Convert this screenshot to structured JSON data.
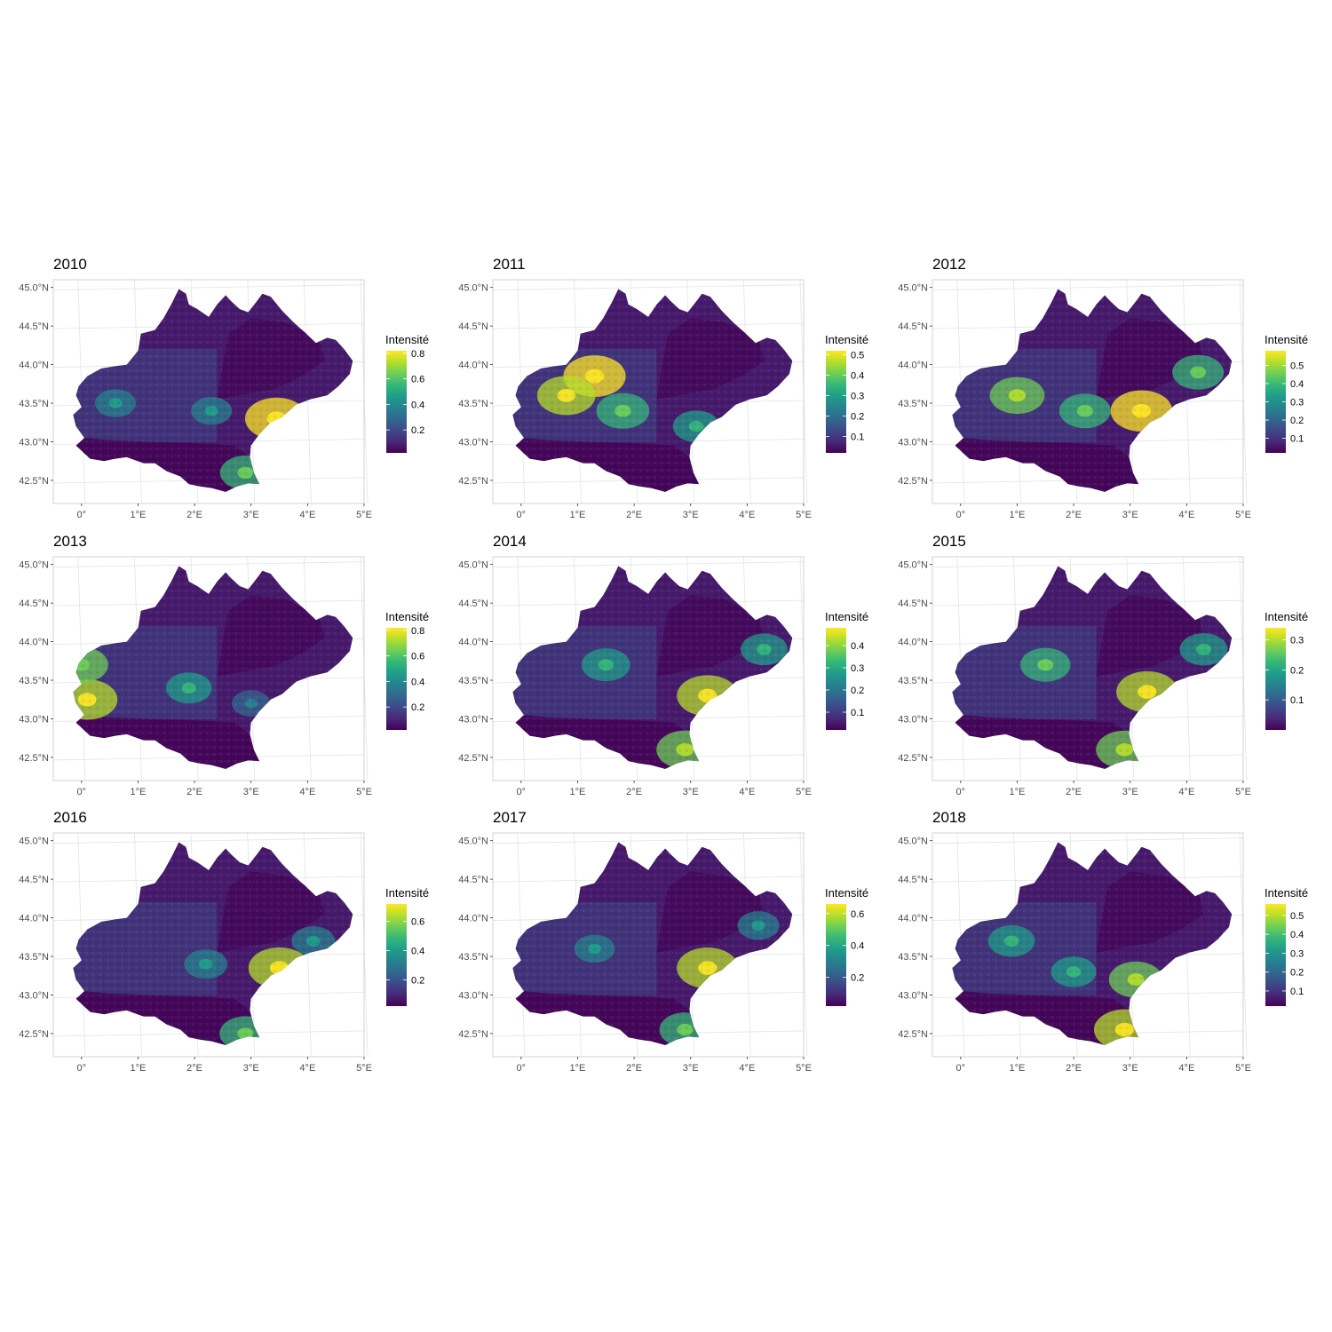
{
  "figure": {
    "legend_title": "Intensité",
    "colormap": [
      "#440154",
      "#482878",
      "#3e4989",
      "#31688e",
      "#26828e",
      "#1f9e89",
      "#35b779",
      "#6ece58",
      "#b5de2b",
      "#fde725"
    ],
    "region_base_color": "#461a6b"
  },
  "chart_data": [
    {
      "type": "heatmap",
      "title": "2010",
      "x_ticks": [
        "0°",
        "1°E",
        "2°E",
        "3°E",
        "4°E",
        "5°E"
      ],
      "y_ticks": [
        "42.5°N",
        "43.0°N",
        "43.5°N",
        "44.0°N",
        "44.5°N",
        "45.0°N"
      ],
      "xlim": [
        -0.5,
        5.0
      ],
      "ylim": [
        42.2,
        45.1
      ],
      "legend": {
        "title": "Intensité",
        "range": [
          0.02,
          0.82
        ],
        "ticks": [
          0.2,
          0.4,
          0.6,
          0.8
        ],
        "tick_labels": [
          "0.2",
          "0.4",
          "0.6",
          "0.8"
        ]
      },
      "hotspots": [
        {
          "lon": 3.45,
          "lat": 43.3,
          "intensity": 0.8
        },
        {
          "lon": 2.9,
          "lat": 42.6,
          "intensity": 0.55
        },
        {
          "lon": 0.6,
          "lat": 43.5,
          "intensity": 0.35
        },
        {
          "lon": 2.3,
          "lat": 43.4,
          "intensity": 0.35
        }
      ]
    },
    {
      "type": "heatmap",
      "title": "2011",
      "x_ticks": [
        "0°",
        "1°E",
        "2°E",
        "3°E",
        "4°E",
        "5°E"
      ],
      "y_ticks": [
        "42.5°N",
        "43.0°N",
        "43.5°N",
        "44.0°N",
        "44.5°N",
        "45.0°N"
      ],
      "xlim": [
        -0.5,
        5.0
      ],
      "ylim": [
        42.2,
        45.1
      ],
      "legend": {
        "title": "Intensité",
        "range": [
          0.02,
          0.52
        ],
        "ticks": [
          0.1,
          0.2,
          0.3,
          0.4,
          0.5
        ],
        "tick_labels": [
          "0.1",
          "0.2",
          "0.3",
          "0.4",
          "0.5"
        ]
      },
      "hotspots": [
        {
          "lon": 1.3,
          "lat": 43.85,
          "intensity": 0.5
        },
        {
          "lon": 0.8,
          "lat": 43.6,
          "intensity": 0.45
        },
        {
          "lon": 1.8,
          "lat": 43.4,
          "intensity": 0.38
        },
        {
          "lon": 3.1,
          "lat": 43.2,
          "intensity": 0.3
        }
      ]
    },
    {
      "type": "heatmap",
      "title": "2012",
      "x_ticks": [
        "0°",
        "1°E",
        "2°E",
        "3°E",
        "4°E",
        "5°E"
      ],
      "y_ticks": [
        "42.5°N",
        "43.0°N",
        "43.5°N",
        "44.0°N",
        "44.5°N",
        "45.0°N"
      ],
      "xlim": [
        -0.5,
        5.0
      ],
      "ylim": [
        42.2,
        45.1
      ],
      "legend": {
        "title": "Intensité",
        "range": [
          0.02,
          0.58
        ],
        "ticks": [
          0.1,
          0.2,
          0.3,
          0.4,
          0.5
        ],
        "tick_labels": [
          "0.1",
          "0.2",
          "0.3",
          "0.4",
          "0.5"
        ]
      },
      "hotspots": [
        {
          "lon": 1.0,
          "lat": 43.6,
          "intensity": 0.45
        },
        {
          "lon": 3.2,
          "lat": 43.4,
          "intensity": 0.55
        },
        {
          "lon": 2.2,
          "lat": 43.4,
          "intensity": 0.4
        },
        {
          "lon": 4.2,
          "lat": 43.9,
          "intensity": 0.4
        }
      ]
    },
    {
      "type": "heatmap",
      "title": "2013",
      "x_ticks": [
        "0°",
        "1°E",
        "2°E",
        "3°E",
        "4°E",
        "5°E"
      ],
      "y_ticks": [
        "42.5°N",
        "43.0°N",
        "43.5°N",
        "44.0°N",
        "44.5°N",
        "45.0°N"
      ],
      "xlim": [
        -0.5,
        5.0
      ],
      "ylim": [
        42.2,
        45.1
      ],
      "legend": {
        "title": "Intensité",
        "range": [
          0.02,
          0.82
        ],
        "ticks": [
          0.2,
          0.4,
          0.6,
          0.8
        ],
        "tick_labels": [
          "0.2",
          "0.4",
          "0.6",
          "0.8"
        ]
      },
      "hotspots": [
        {
          "lon": 0.1,
          "lat": 43.25,
          "intensity": 0.75
        },
        {
          "lon": 0.0,
          "lat": 43.7,
          "intensity": 0.6
        },
        {
          "lon": 1.9,
          "lat": 43.4,
          "intensity": 0.45
        },
        {
          "lon": 3.0,
          "lat": 43.2,
          "intensity": 0.3
        }
      ]
    },
    {
      "type": "heatmap",
      "title": "2014",
      "x_ticks": [
        "0°",
        "1°E",
        "2°E",
        "3°E",
        "4°E",
        "5°E"
      ],
      "y_ticks": [
        "42.5°N",
        "43.0°N",
        "43.5°N",
        "44.0°N",
        "44.5°N",
        "45.0°N"
      ],
      "xlim": [
        -0.5,
        5.0
      ],
      "ylim": [
        42.2,
        45.1
      ],
      "legend": {
        "title": "Intensité",
        "range": [
          0.02,
          0.48
        ],
        "ticks": [
          0.1,
          0.2,
          0.3,
          0.4
        ],
        "tick_labels": [
          "0.1",
          "0.2",
          "0.3",
          "0.4"
        ]
      },
      "hotspots": [
        {
          "lon": 3.3,
          "lat": 43.3,
          "intensity": 0.45
        },
        {
          "lon": 2.9,
          "lat": 42.6,
          "intensity": 0.4
        },
        {
          "lon": 1.5,
          "lat": 43.7,
          "intensity": 0.3
        },
        {
          "lon": 4.3,
          "lat": 43.9,
          "intensity": 0.28
        }
      ]
    },
    {
      "type": "heatmap",
      "title": "2015",
      "x_ticks": [
        "0°",
        "1°E",
        "2°E",
        "3°E",
        "4°E",
        "5°E"
      ],
      "y_ticks": [
        "42.5°N",
        "43.0°N",
        "43.5°N",
        "44.0°N",
        "44.5°N",
        "45.0°N"
      ],
      "xlim": [
        -0.5,
        5.0
      ],
      "ylim": [
        42.2,
        45.1
      ],
      "legend": {
        "title": "Intensité",
        "range": [
          0.0,
          0.34
        ],
        "ticks": [
          0.1,
          0.2,
          0.3
        ],
        "tick_labels": [
          "0.1",
          "0.2",
          "0.3"
        ]
      },
      "hotspots": [
        {
          "lon": 3.3,
          "lat": 43.35,
          "intensity": 0.32
        },
        {
          "lon": 2.9,
          "lat": 42.6,
          "intensity": 0.28
        },
        {
          "lon": 1.5,
          "lat": 43.7,
          "intensity": 0.22
        },
        {
          "lon": 4.3,
          "lat": 43.9,
          "intensity": 0.2
        }
      ]
    },
    {
      "type": "heatmap",
      "title": "2016",
      "x_ticks": [
        "0°",
        "1°E",
        "2°E",
        "3°E",
        "4°E",
        "5°E"
      ],
      "y_ticks": [
        "42.5°N",
        "43.0°N",
        "43.5°N",
        "44.0°N",
        "44.5°N",
        "45.0°N"
      ],
      "xlim": [
        -0.5,
        5.0
      ],
      "ylim": [
        42.2,
        45.1
      ],
      "legend": {
        "title": "Intensité",
        "range": [
          0.02,
          0.72
        ],
        "ticks": [
          0.2,
          0.4,
          0.6
        ],
        "tick_labels": [
          "0.2",
          "0.4",
          "0.6"
        ]
      },
      "hotspots": [
        {
          "lon": 3.5,
          "lat": 43.35,
          "intensity": 0.68
        },
        {
          "lon": 2.9,
          "lat": 42.5,
          "intensity": 0.5
        },
        {
          "lon": 2.2,
          "lat": 43.4,
          "intensity": 0.35
        },
        {
          "lon": 4.1,
          "lat": 43.7,
          "intensity": 0.35
        }
      ]
    },
    {
      "type": "heatmap",
      "title": "2017",
      "x_ticks": [
        "0°",
        "1°E",
        "2°E",
        "3°E",
        "4°E",
        "5°E"
      ],
      "y_ticks": [
        "42.5°N",
        "43.0°N",
        "43.5°N",
        "44.0°N",
        "44.5°N",
        "45.0°N"
      ],
      "xlim": [
        -0.5,
        5.0
      ],
      "ylim": [
        42.2,
        45.1
      ],
      "legend": {
        "title": "Intensité",
        "range": [
          0.02,
          0.66
        ],
        "ticks": [
          0.2,
          0.4,
          0.6
        ],
        "tick_labels": [
          "0.2",
          "0.4",
          "0.6"
        ]
      },
      "hotspots": [
        {
          "lon": 3.3,
          "lat": 43.35,
          "intensity": 0.62
        },
        {
          "lon": 2.9,
          "lat": 42.55,
          "intensity": 0.45
        },
        {
          "lon": 1.3,
          "lat": 43.6,
          "intensity": 0.28
        },
        {
          "lon": 4.2,
          "lat": 43.9,
          "intensity": 0.3
        }
      ]
    },
    {
      "type": "heatmap",
      "title": "2018",
      "x_ticks": [
        "0°",
        "1°E",
        "2°E",
        "3°E",
        "4°E",
        "5°E"
      ],
      "y_ticks": [
        "42.5°N",
        "43.0°N",
        "43.5°N",
        "44.0°N",
        "44.5°N",
        "45.0°N"
      ],
      "xlim": [
        -0.5,
        5.0
      ],
      "ylim": [
        42.2,
        45.1
      ],
      "legend": {
        "title": "Intensité",
        "range": [
          0.02,
          0.56
        ],
        "ticks": [
          0.1,
          0.2,
          0.3,
          0.4,
          0.5
        ],
        "tick_labels": [
          "0.1",
          "0.2",
          "0.3",
          "0.4",
          "0.5"
        ]
      },
      "hotspots": [
        {
          "lon": 2.9,
          "lat": 42.55,
          "intensity": 0.52
        },
        {
          "lon": 3.1,
          "lat": 43.2,
          "intensity": 0.42
        },
        {
          "lon": 0.9,
          "lat": 43.7,
          "intensity": 0.32
        },
        {
          "lon": 2.0,
          "lat": 43.3,
          "intensity": 0.3
        }
      ]
    }
  ]
}
